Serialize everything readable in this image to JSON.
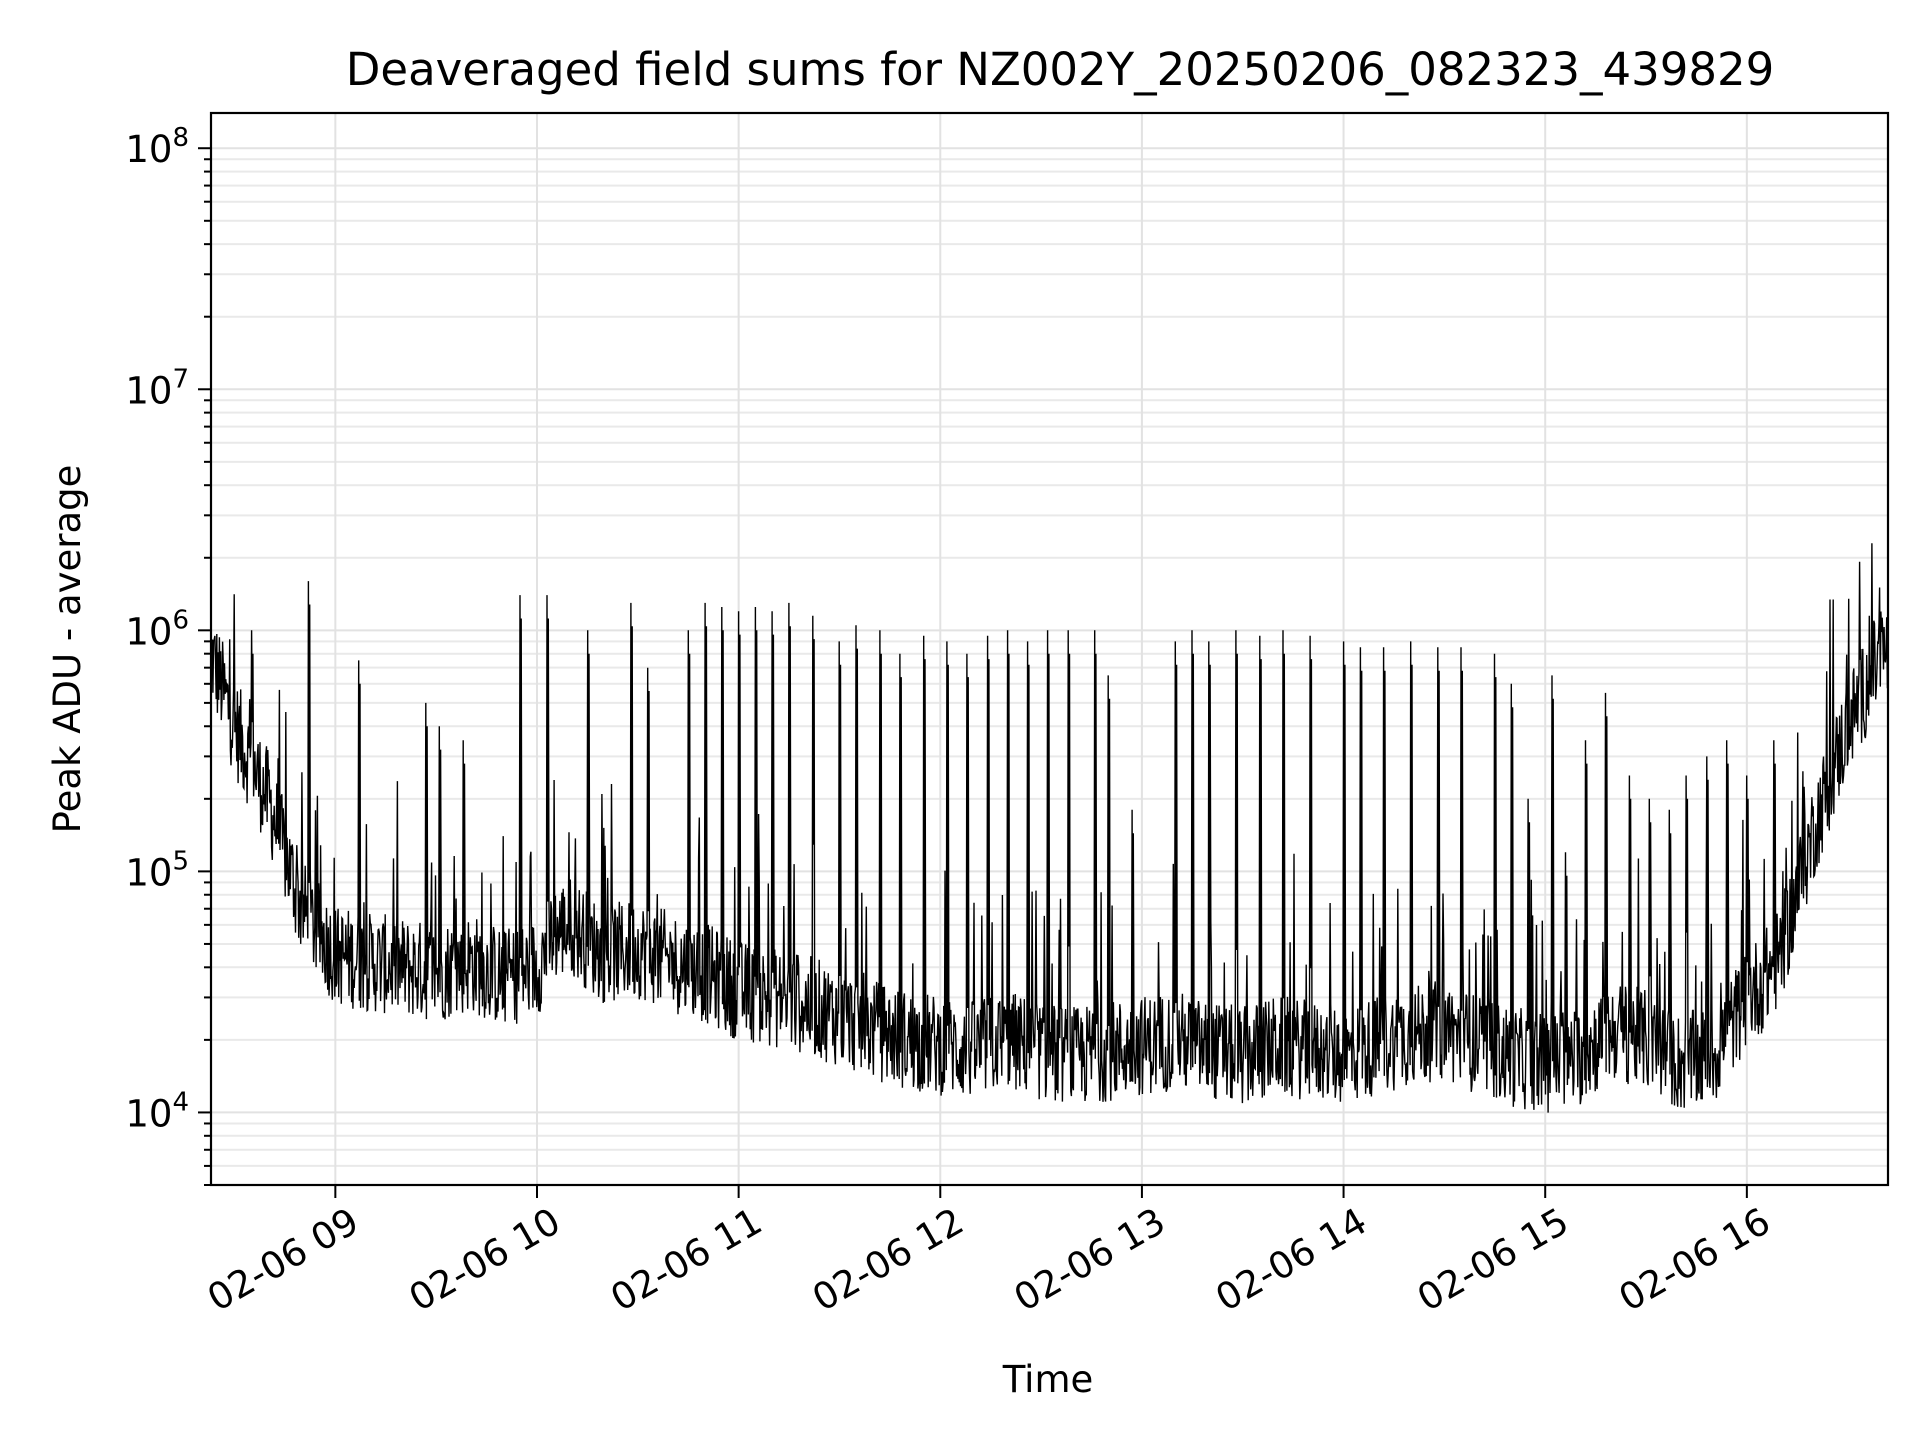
{
  "chart_data": {
    "type": "line",
    "title": "Deaveraged field sums for NZ002Y_20250206_082323_439829",
    "xlabel": "Time",
    "ylabel": "Peak ADU - average",
    "yscale": "log",
    "ylim": [
      5000,
      140000000
    ],
    "xlim": [
      "2025-02-06 08:23",
      "2025-02-06 16:42"
    ],
    "grid": true,
    "x_ticks": [
      "02-06 09",
      "02-06 10",
      "02-06 11",
      "02-06 12",
      "02-06 13",
      "02-06 14",
      "02-06 15",
      "02-06 16"
    ],
    "y_ticks": [
      {
        "base": "10",
        "exp": "4",
        "value": 10000
      },
      {
        "base": "10",
        "exp": "5",
        "value": 100000
      },
      {
        "base": "10",
        "exp": "6",
        "value": 1000000
      },
      {
        "base": "10",
        "exp": "7",
        "value": 10000000
      },
      {
        "base": "10",
        "exp": "8",
        "value": 100000000
      }
    ],
    "line_color": "#000000",
    "series": [
      {
        "x": [
          "08:23",
          "08:30",
          "08:40",
          "08:50",
          "09:00",
          "09:10",
          "09:20",
          "09:30",
          "09:40",
          "09:50",
          "10:00",
          "10:05",
          "10:10",
          "10:20",
          "10:30",
          "10:40",
          "10:50",
          "11:00",
          "11:10",
          "11:20",
          "11:30",
          "11:40",
          "11:50",
          "12:00",
          "12:10",
          "12:20",
          "12:30",
          "12:40",
          "12:50",
          "13:00",
          "13:10",
          "13:20",
          "13:30",
          "13:40",
          "13:50",
          "14:00",
          "14:10",
          "14:20",
          "14:30",
          "14:40",
          "14:50",
          "15:00",
          "15:10",
          "15:20",
          "15:30",
          "15:40",
          "15:50",
          "16:00",
          "16:05",
          "16:10",
          "16:20",
          "16:30",
          "16:40"
        ],
        "y": [
          800000,
          400000,
          200000,
          70000,
          45000,
          42000,
          40000,
          38000,
          42000,
          36000,
          40000,
          55000,
          60000,
          45000,
          48000,
          42000,
          38000,
          32000,
          30000,
          28000,
          25000,
          22000,
          20000,
          19000,
          18000,
          20000,
          18000,
          17000,
          18000,
          19000,
          20000,
          18000,
          17000,
          19000,
          18000,
          17000,
          19000,
          21000,
          22000,
          19000,
          17000,
          16000,
          17000,
          22000,
          20000,
          16000,
          17000,
          30000,
          35000,
          45000,
          150000,
          400000,
          800000
        ],
        "spikes": [
          [
            "08:35",
            1000000
          ],
          [
            "08:52",
            1600000
          ],
          [
            "09:07",
            750000
          ],
          [
            "09:27",
            500000
          ],
          [
            "09:31",
            400000
          ],
          [
            "09:38",
            350000
          ],
          [
            "09:55",
            1400000
          ],
          [
            "10:03",
            1400000
          ],
          [
            "10:15",
            1000000
          ],
          [
            "10:28",
            1300000
          ],
          [
            "10:33",
            700000
          ],
          [
            "10:45",
            1000000
          ],
          [
            "10:50",
            1300000
          ],
          [
            "10:55",
            1250000
          ],
          [
            "11:00",
            1200000
          ],
          [
            "11:05",
            1250000
          ],
          [
            "11:10",
            1200000
          ],
          [
            "11:15",
            1300000
          ],
          [
            "11:22",
            1150000
          ],
          [
            "11:30",
            900000
          ],
          [
            "11:35",
            1050000
          ],
          [
            "11:42",
            1000000
          ],
          [
            "11:48",
            800000
          ],
          [
            "11:55",
            950000
          ],
          [
            "12:02",
            900000
          ],
          [
            "12:08",
            800000
          ],
          [
            "12:14",
            950000
          ],
          [
            "12:20",
            1000000
          ],
          [
            "12:26",
            900000
          ],
          [
            "12:32",
            1000000
          ],
          [
            "12:38",
            1000000
          ],
          [
            "12:46",
            1000000
          ],
          [
            "12:50",
            650000
          ],
          [
            "12:57",
            180000
          ],
          [
            "13:10",
            900000
          ],
          [
            "13:15",
            1000000
          ],
          [
            "13:20",
            900000
          ],
          [
            "13:28",
            1000000
          ],
          [
            "13:35",
            950000
          ],
          [
            "13:42",
            1000000
          ],
          [
            "13:50",
            950000
          ],
          [
            "14:00",
            900000
          ],
          [
            "14:05",
            850000
          ],
          [
            "14:12",
            850000
          ],
          [
            "14:20",
            900000
          ],
          [
            "14:28",
            850000
          ],
          [
            "14:35",
            850000
          ],
          [
            "14:45",
            800000
          ],
          [
            "14:50",
            600000
          ],
          [
            "14:55",
            200000
          ],
          [
            "15:02",
            650000
          ],
          [
            "15:06",
            120000
          ],
          [
            "15:12",
            350000
          ],
          [
            "15:18",
            550000
          ],
          [
            "15:25",
            250000
          ],
          [
            "15:31",
            200000
          ],
          [
            "15:37",
            180000
          ],
          [
            "15:42",
            250000
          ],
          [
            "15:48",
            300000
          ],
          [
            "15:54",
            350000
          ],
          [
            "16:00",
            250000
          ],
          [
            "16:08",
            350000
          ]
        ]
      }
    ]
  }
}
